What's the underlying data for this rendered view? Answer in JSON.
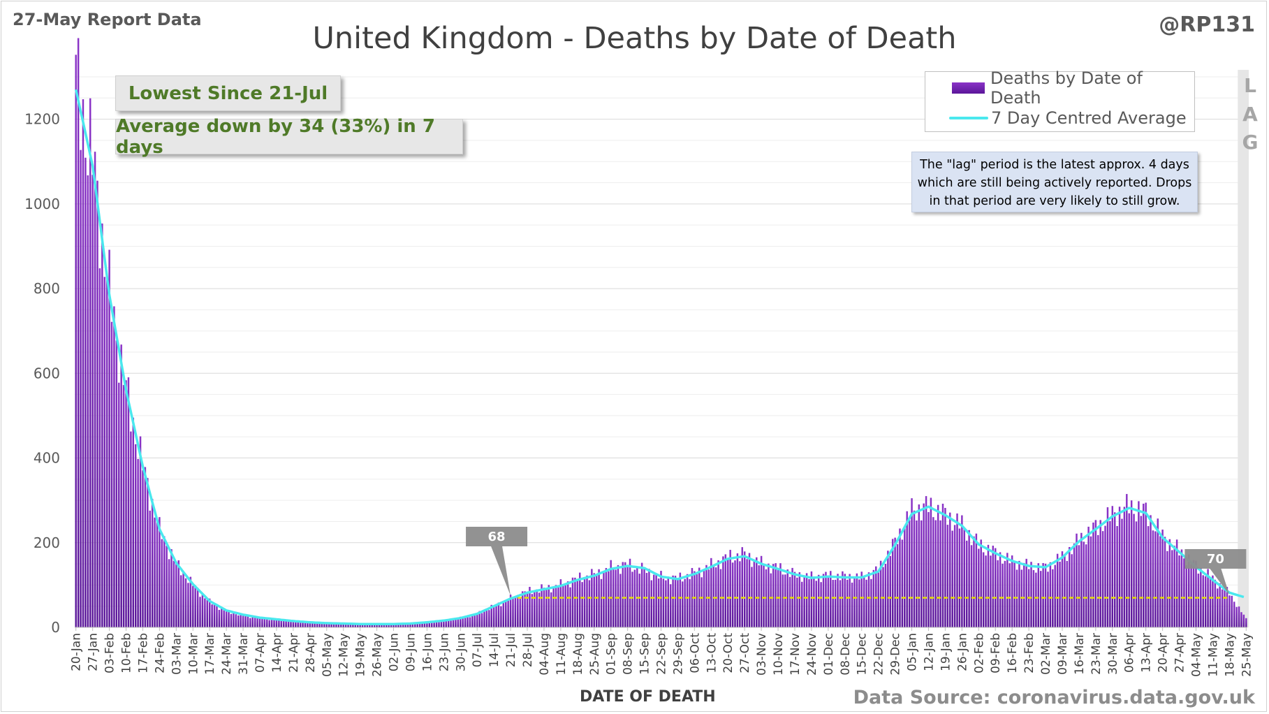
{
  "header": {
    "report_date": "27-May Report Data",
    "handle": "@RP131",
    "title": "United Kingdom - Deaths by Date of Death"
  },
  "callouts": {
    "lowest": "Lowest Since 21-Jul",
    "average": "Average down by 34 (33%) in 7 days"
  },
  "legend": {
    "bars_label": "Deaths by Date of Death",
    "line_label": "7 Day Centred Average"
  },
  "lag": {
    "letters": [
      "L",
      "A",
      "G"
    ],
    "note_lines": [
      "The \"lag\" period is the latest approx. 4 days",
      "which are still being actively reported.  Drops",
      "in that period are very likely to still grow."
    ]
  },
  "footer": {
    "x_axis_title": "DATE OF DEATH",
    "source": "Data Source: coronavirus.data.gov.uk"
  },
  "colors": {
    "bar_top": "#8a33c7",
    "bar_bottom": "#5a1699",
    "average_line": "#4ae8ee",
    "reference_line": "#e8e000",
    "marker_fill": "#8c8c8c",
    "lag_shade": "#e6e6e6",
    "callout_text": "#4f7a28"
  },
  "chart_data": {
    "type": "bar",
    "ylim": [
      0,
      1300
    ],
    "y_ticks": [
      0,
      200,
      400,
      600,
      800,
      1000,
      1200
    ],
    "grid": true,
    "legend_position": "top-right",
    "x_start": "20-Jan",
    "x_end": "25-May",
    "x_tick_labels": [
      "20-Jan",
      "27-Jan",
      "03-Feb",
      "10-Feb",
      "17-Feb",
      "24-Feb",
      "03-Mar",
      "10-Mar",
      "17-Mar",
      "24-Mar",
      "31-Mar",
      "07-Apr",
      "14-Apr",
      "21-Apr",
      "28-Apr",
      "05-May",
      "12-May",
      "19-May",
      "26-May",
      "02-Jun",
      "09-Jun",
      "16-Jun",
      "23-Jun",
      "30-Jun",
      "07-Jul",
      "14-Jul",
      "21-Jul",
      "28-Jul",
      "04-Aug",
      "11-Aug",
      "18-Aug",
      "25-Aug",
      "01-Sep",
      "08-Sep",
      "15-Sep",
      "22-Sep",
      "29-Sep",
      "06-Oct",
      "13-Oct",
      "20-Oct",
      "27-Oct",
      "03-Nov",
      "10-Nov",
      "17-Nov",
      "24-Nov",
      "01-Dec",
      "08-Dec",
      "15-Dec",
      "22-Dec",
      "29-Dec",
      "05-Jan",
      "12-Jan",
      "19-Jan",
      "26-Jan",
      "02-Feb",
      "09-Feb",
      "16-Feb",
      "23-Feb",
      "02-Mar",
      "09-Mar",
      "16-Mar",
      "23-Mar",
      "30-Mar",
      "06-Apr",
      "13-Apr",
      "20-Apr",
      "27-Apr",
      "04-May",
      "11-May",
      "18-May",
      "25-May"
    ],
    "daily_deaths_weekly_approx": [
      1290,
      1100,
      790,
      560,
      380,
      230,
      150,
      100,
      60,
      38,
      28,
      22,
      18,
      15,
      12,
      10,
      9,
      8,
      8,
      8,
      9,
      12,
      16,
      22,
      32,
      50,
      68,
      85,
      92,
      100,
      115,
      125,
      140,
      148,
      135,
      118,
      115,
      128,
      145,
      165,
      172,
      150,
      140,
      125,
      118,
      122,
      120,
      118,
      135,
      200,
      275,
      285,
      265,
      240,
      195,
      175,
      155,
      145,
      140,
      165,
      205,
      235,
      265,
      285,
      272,
      215,
      180,
      145,
      115,
      80,
      20
    ],
    "average_line": {
      "name": "7 Day Centred Average",
      "values": [
        1270,
        1090,
        785,
        560,
        380,
        232,
        152,
        102,
        62,
        40,
        30,
        23,
        19,
        15,
        12,
        10,
        9,
        8,
        8,
        8,
        9,
        12,
        16,
        22,
        32,
        50,
        68,
        82,
        90,
        98,
        112,
        122,
        138,
        145,
        140,
        120,
        114,
        126,
        143,
        162,
        168,
        150,
        138,
        125,
        117,
        120,
        118,
        118,
        132,
        195,
        268,
        285,
        265,
        240,
        196,
        175,
        157,
        145,
        142,
        165,
        203,
        232,
        262,
        282,
        270,
        212,
        178,
        143,
        112,
        82,
        70
      ]
    },
    "reference_level": 70,
    "markers": [
      {
        "label": "68",
        "date": "21-Jul",
        "value": 68
      },
      {
        "label": "70",
        "date": "18-May",
        "value": 70
      }
    ],
    "lag_period": [
      "22-May",
      "25-May"
    ]
  }
}
